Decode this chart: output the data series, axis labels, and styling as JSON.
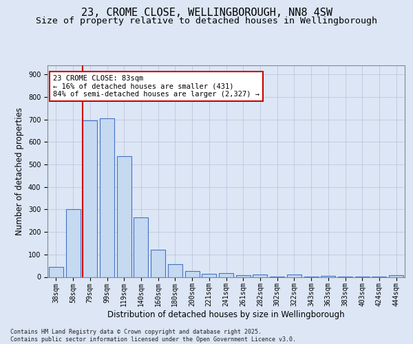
{
  "title_line1": "23, CROME CLOSE, WELLINGBOROUGH, NN8 4SW",
  "title_line2": "Size of property relative to detached houses in Wellingborough",
  "xlabel": "Distribution of detached houses by size in Wellingborough",
  "ylabel": "Number of detached properties",
  "categories": [
    "38sqm",
    "58sqm",
    "79sqm",
    "99sqm",
    "119sqm",
    "140sqm",
    "160sqm",
    "180sqm",
    "200sqm",
    "221sqm",
    "241sqm",
    "261sqm",
    "282sqm",
    "302sqm",
    "322sqm",
    "343sqm",
    "363sqm",
    "383sqm",
    "403sqm",
    "424sqm",
    "444sqm"
  ],
  "values": [
    45,
    300,
    695,
    705,
    537,
    265,
    121,
    57,
    25,
    14,
    18,
    8,
    10,
    2,
    10,
    2,
    4,
    1,
    1,
    1,
    8
  ],
  "bar_color": "#c5d9f1",
  "bar_edge_color": "#4472c4",
  "bar_edge_width": 0.8,
  "vline_x_index": 2,
  "vline_color": "#cc0000",
  "annotation_text": "23 CROME CLOSE: 83sqm\n← 16% of detached houses are smaller (431)\n84% of semi-detached houses are larger (2,327) →",
  "bg_color": "#dce6f5",
  "plot_bg_color": "#dce6f5",
  "footer_text": "Contains HM Land Registry data © Crown copyright and database right 2025.\nContains public sector information licensed under the Open Government Licence v3.0.",
  "ylim": [
    0,
    940
  ],
  "yticks": [
    0,
    100,
    200,
    300,
    400,
    500,
    600,
    700,
    800,
    900
  ],
  "title_fontsize": 11,
  "subtitle_fontsize": 9.5,
  "axis_label_fontsize": 8.5,
  "tick_fontsize": 7,
  "annotation_fontsize": 7.5,
  "footer_fontsize": 6
}
